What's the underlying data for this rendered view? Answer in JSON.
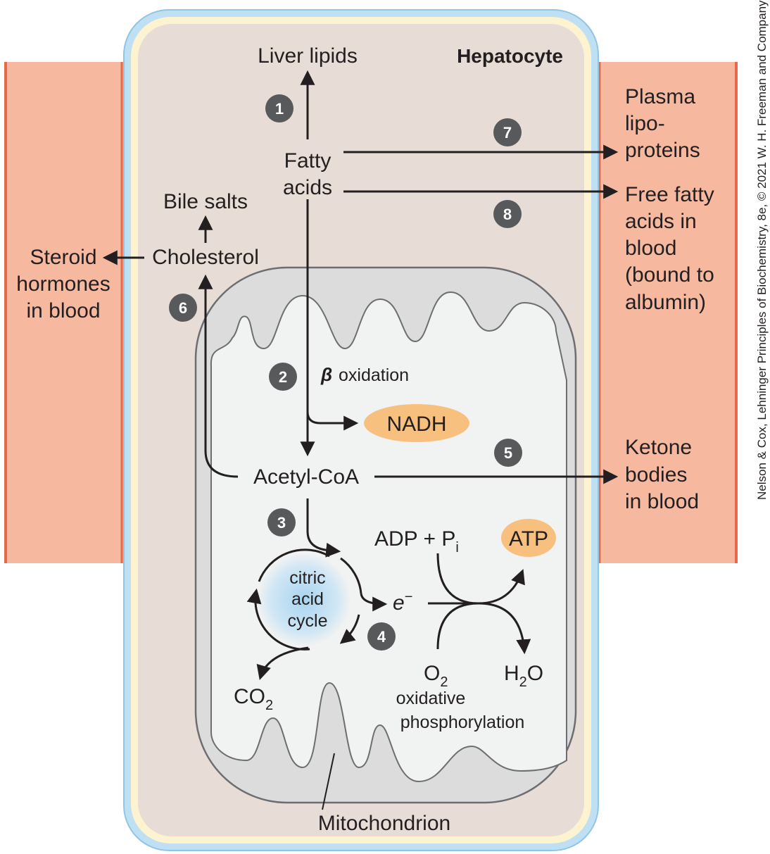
{
  "title": "Hepatocyte",
  "colors": {
    "blood": "#f7b8a0",
    "blood_edge": "#e8684a",
    "cell": "#e8ddd6",
    "membrane_outer": "#bfe0f2",
    "membrane_inner": "#fdf3d0",
    "mito_outer": "#dcdcdd",
    "mito_inner": "#f1f2f2",
    "highlight": "#f8c07e",
    "step_badge": "#58595b"
  },
  "labels": {
    "liver_lipids": "Liver lipids",
    "fatty_acids_1": "Fatty",
    "fatty_acids_2": "acids",
    "bile_salts": "Bile salts",
    "cholesterol": "Cholesterol",
    "steroid_1": "Steroid",
    "steroid_2": "hormones",
    "steroid_3": "in blood",
    "plasma_1": "Plasma",
    "plasma_2": "lipo-",
    "plasma_3": "proteins",
    "ffa_1": "Free fatty",
    "ffa_2": "acids in",
    "ffa_3": "blood",
    "ffa_4": "(bound to",
    "ffa_5": "albumin)",
    "beta_symbol": "β",
    "beta_text": "oxidation",
    "nadh": "NADH",
    "acetyl_coa": "Acetyl-CoA",
    "ketone_1": "Ketone",
    "ketone_2": "bodies",
    "ketone_3": "in blood",
    "adp": "ADP + P",
    "adp_sub": "i",
    "atp": "ATP",
    "tca_1": "citric",
    "tca_2": "acid",
    "tca_3": "cycle",
    "electron": "e",
    "electron_sup": "−",
    "o2": "O",
    "o2_sub": "2",
    "h2o_h": "H",
    "h2o_sub": "2",
    "h2o_o": "O",
    "co2": "CO",
    "co2_sub": "2",
    "oxphos_1": "oxidative",
    "oxphos_2": "phosphorylation",
    "mitochondrion": "Mitochondrion",
    "credit": "Nelson & Cox, Lehninger Principles of Biochemistry, 8e, © 2021 W. H. Freeman and Company"
  },
  "steps": [
    "1",
    "2",
    "3",
    "4",
    "5",
    "6",
    "7",
    "8"
  ]
}
